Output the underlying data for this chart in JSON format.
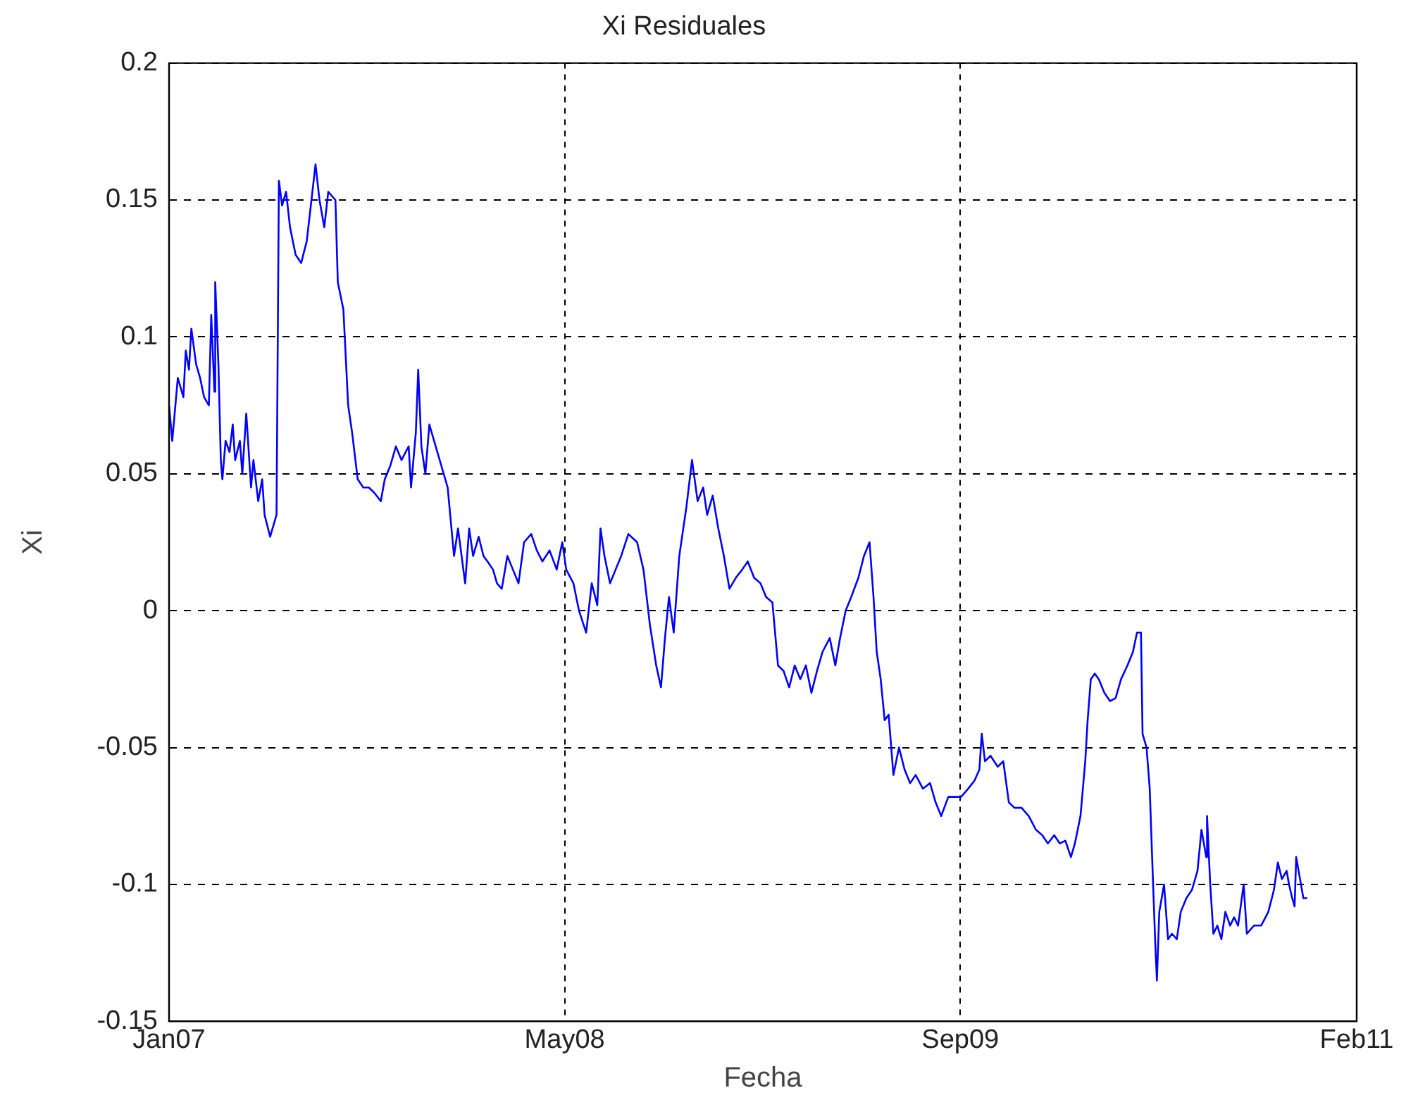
{
  "chart_data": {
    "type": "line",
    "title": "Xi Residuales",
    "xlabel": "Fecha",
    "ylabel": "Xi",
    "xlim": [
      "2007-01-01",
      "2011-02-01"
    ],
    "xticks": [
      {
        "value": "2007-01-01",
        "label": "Jan07"
      },
      {
        "value": "2008-05-12",
        "label": "May08"
      },
      {
        "value": "2009-09-21",
        "label": "Sep09"
      },
      {
        "value": "2011-02-01",
        "label": "Feb11"
      }
    ],
    "ylim": [
      -0.15,
      0.2
    ],
    "yticks": [
      -0.15,
      -0.1,
      -0.05,
      0,
      0.05,
      0.1,
      0.15,
      0.2
    ],
    "grid": true,
    "legend": false,
    "marker": "none",
    "line_style": "solid",
    "x": [
      "2007-01-01",
      "2007-01-05",
      "2007-01-12",
      "2007-01-19",
      "2007-01-22",
      "2007-01-26",
      "2007-01-29",
      "2007-02-04",
      "2007-02-09",
      "2007-02-14",
      "2007-02-20",
      "2007-02-23",
      "2007-02-27",
      "2007-02-28",
      "2007-03-04",
      "2007-03-07",
      "2007-03-09",
      "2007-03-13",
      "2007-03-18",
      "2007-03-22",
      "2007-03-25",
      "2007-03-31",
      "2007-04-03",
      "2007-04-08",
      "2007-04-14",
      "2007-04-17",
      "2007-04-23",
      "2007-04-28",
      "2007-05-01",
      "2007-05-08",
      "2007-05-16",
      "2007-05-19",
      "2007-05-23",
      "2007-05-28",
      "2007-06-02",
      "2007-06-09",
      "2007-06-16",
      "2007-06-23",
      "2007-07-04",
      "2007-07-09",
      "2007-07-15",
      "2007-07-20",
      "2007-07-29",
      "2007-08-01",
      "2007-08-08",
      "2007-08-14",
      "2007-08-19",
      "2007-08-26",
      "2007-09-02",
      "2007-09-09",
      "2007-09-16",
      "2007-09-24",
      "2007-09-29",
      "2007-10-06",
      "2007-10-13",
      "2007-10-20",
      "2007-10-29",
      "2007-11-01",
      "2007-11-07",
      "2007-11-10",
      "2007-11-14",
      "2007-11-19",
      "2007-11-24",
      "2007-12-02",
      "2007-12-07",
      "2007-12-17",
      "2007-12-25",
      "2007-12-30",
      "2008-01-08",
      "2008-01-13",
      "2008-01-18",
      "2008-01-25",
      "2008-01-31",
      "2008-02-05",
      "2008-02-12",
      "2008-02-17",
      "2008-02-23",
      "2008-03-01",
      "2008-03-08",
      "2008-03-15",
      "2008-03-22",
      "2008-03-31",
      "2008-04-07",
      "2008-04-14",
      "2008-04-23",
      "2008-05-02",
      "2008-05-09",
      "2008-05-14",
      "2008-05-23",
      "2008-05-30",
      "2008-06-08",
      "2008-06-15",
      "2008-06-22",
      "2008-06-26",
      "2008-07-01",
      "2008-07-08",
      "2008-07-15",
      "2008-07-22",
      "2008-07-31",
      "2008-08-11",
      "2008-08-19",
      "2008-08-27",
      "2008-09-04",
      "2008-09-10",
      "2008-09-15",
      "2008-09-20",
      "2008-09-26",
      "2008-10-03",
      "2008-10-12",
      "2008-10-19",
      "2008-10-26",
      "2008-11-02",
      "2008-11-07",
      "2008-11-14",
      "2008-11-21",
      "2008-11-28",
      "2008-12-05",
      "2008-12-13",
      "2008-12-21",
      "2008-12-28",
      "2009-01-05",
      "2009-01-13",
      "2009-01-20",
      "2009-01-28",
      "2009-02-04",
      "2009-02-11",
      "2009-02-18",
      "2009-02-25",
      "2009-03-04",
      "2009-03-11",
      "2009-03-18",
      "2009-03-25",
      "2009-04-01",
      "2009-04-10",
      "2009-04-17",
      "2009-04-23",
      "2009-04-30",
      "2009-05-07",
      "2009-05-16",
      "2009-05-23",
      "2009-05-30",
      "2009-06-04",
      "2009-06-08",
      "2009-06-13",
      "2009-06-18",
      "2009-06-23",
      "2009-06-29",
      "2009-07-06",
      "2009-07-13",
      "2009-07-20",
      "2009-07-27",
      "2009-08-05",
      "2009-08-14",
      "2009-08-21",
      "2009-08-28",
      "2009-09-06",
      "2009-09-13",
      "2009-09-22",
      "2009-10-01",
      "2009-10-09",
      "2009-10-15",
      "2009-10-18",
      "2009-10-22",
      "2009-10-29",
      "2009-11-07",
      "2009-11-14",
      "2009-11-21",
      "2009-11-28",
      "2009-12-07",
      "2009-12-16",
      "2009-12-25",
      "2010-01-02",
      "2010-01-09",
      "2010-01-17",
      "2010-01-24",
      "2010-01-31",
      "2010-02-07",
      "2010-02-12",
      "2010-02-19",
      "2010-02-25",
      "2010-02-28",
      "2010-03-04",
      "2010-03-09",
      "2010-03-14",
      "2010-03-21",
      "2010-03-28",
      "2010-04-04",
      "2010-04-11",
      "2010-04-19",
      "2010-04-26",
      "2010-05-01",
      "2010-05-06",
      "2010-05-08",
      "2010-05-13",
      "2010-05-17",
      "2010-05-20",
      "2010-05-24",
      "2010-05-26",
      "2010-05-29",
      "2010-06-04",
      "2010-06-09",
      "2010-06-14",
      "2010-06-20",
      "2010-06-25",
      "2010-07-02",
      "2010-07-09",
      "2010-07-16",
      "2010-07-21",
      "2010-07-27",
      "2010-07-28",
      "2010-08-01",
      "2010-08-05",
      "2010-08-10",
      "2010-08-15",
      "2010-08-20",
      "2010-08-26",
      "2010-08-31",
      "2010-09-05",
      "2010-09-12",
      "2010-09-16",
      "2010-09-25",
      "2010-10-04",
      "2010-10-13",
      "2010-10-20",
      "2010-10-25",
      "2010-10-30",
      "2010-11-05",
      "2010-11-08",
      "2010-11-12",
      "2010-11-15",
      "2010-11-17",
      "2010-11-26",
      "2010-12-01"
    ],
    "series": [
      {
        "color": "#0000ff",
        "values": [
          0.075,
          0.062,
          0.085,
          0.078,
          0.095,
          0.088,
          0.103,
          0.09,
          0.085,
          0.078,
          0.075,
          0.108,
          0.08,
          0.12,
          0.09,
          0.055,
          0.048,
          0.062,
          0.058,
          0.068,
          0.055,
          0.062,
          0.05,
          0.072,
          0.045,
          0.055,
          0.04,
          0.048,
          0.035,
          0.027,
          0.035,
          0.157,
          0.148,
          0.153,
          0.14,
          0.13,
          0.127,
          0.135,
          0.163,
          0.15,
          0.14,
          0.153,
          0.15,
          0.12,
          0.11,
          0.075,
          0.065,
          0.048,
          0.045,
          0.045,
          0.043,
          0.04,
          0.048,
          0.053,
          0.06,
          0.055,
          0.06,
          0.045,
          0.065,
          0.088,
          0.06,
          0.05,
          0.068,
          0.06,
          0.055,
          0.045,
          0.02,
          0.03,
          0.01,
          0.03,
          0.02,
          0.027,
          0.02,
          0.018,
          0.015,
          0.01,
          0.008,
          0.02,
          0.015,
          0.01,
          0.025,
          0.028,
          0.022,
          0.018,
          0.022,
          0.015,
          0.025,
          0.015,
          0.01,
          0.0,
          -0.008,
          0.01,
          0.002,
          0.03,
          0.02,
          0.01,
          0.015,
          0.02,
          0.028,
          0.025,
          0.015,
          -0.005,
          -0.02,
          -0.028,
          -0.01,
          0.005,
          -0.008,
          0.02,
          0.038,
          0.055,
          0.04,
          0.045,
          0.035,
          0.042,
          0.03,
          0.02,
          0.008,
          0.012,
          0.015,
          0.018,
          0.012,
          0.01,
          0.005,
          0.003,
          -0.02,
          -0.022,
          -0.028,
          -0.02,
          -0.025,
          -0.02,
          -0.03,
          -0.022,
          -0.015,
          -0.01,
          -0.02,
          -0.01,
          0.0,
          0.005,
          0.012,
          0.02,
          0.025,
          0.005,
          -0.015,
          -0.025,
          -0.04,
          -0.038,
          -0.06,
          -0.05,
          -0.058,
          -0.063,
          -0.06,
          -0.065,
          -0.063,
          -0.07,
          -0.075,
          -0.068,
          -0.068,
          -0.068,
          -0.065,
          -0.062,
          -0.058,
          -0.045,
          -0.055,
          -0.053,
          -0.057,
          -0.055,
          -0.07,
          -0.072,
          -0.072,
          -0.075,
          -0.08,
          -0.082,
          -0.085,
          -0.082,
          -0.085,
          -0.084,
          -0.09,
          -0.085,
          -0.075,
          -0.055,
          -0.04,
          -0.025,
          -0.023,
          -0.025,
          -0.03,
          -0.033,
          -0.032,
          -0.025,
          -0.02,
          -0.015,
          -0.008,
          -0.008,
          -0.045,
          -0.05,
          -0.065,
          -0.09,
          -0.122,
          -0.135,
          -0.11,
          -0.1,
          -0.12,
          -0.118,
          -0.12,
          -0.11,
          -0.105,
          -0.102,
          -0.095,
          -0.08,
          -0.09,
          -0.075,
          -0.1,
          -0.118,
          -0.115,
          -0.12,
          -0.11,
          -0.115,
          -0.112,
          -0.115,
          -0.1,
          -0.118,
          -0.115,
          -0.115,
          -0.11,
          -0.102,
          -0.092,
          -0.098,
          -0.095,
          -0.1,
          -0.105,
          -0.108,
          -0.09,
          -0.105,
          -0.105
        ]
      }
    ]
  }
}
